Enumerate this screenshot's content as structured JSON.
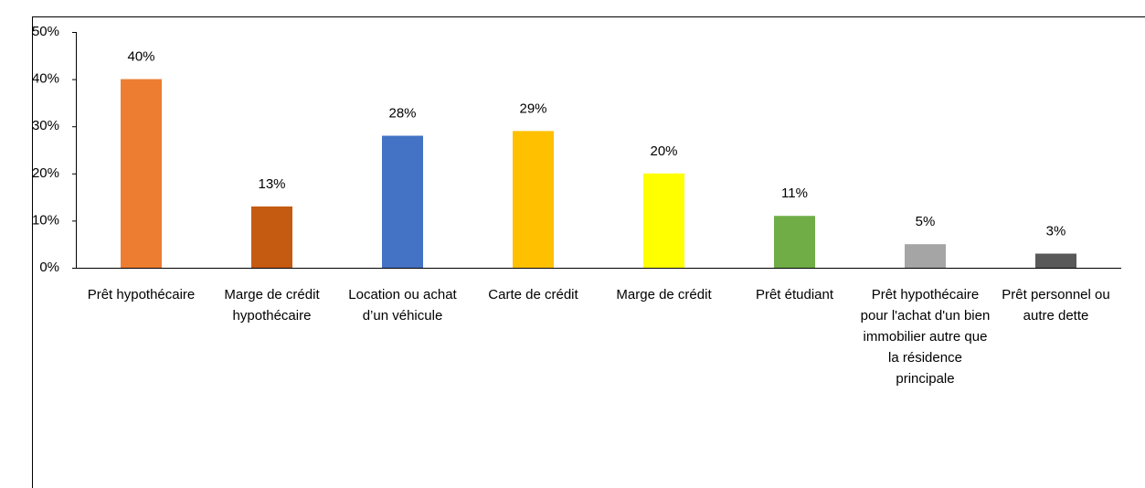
{
  "chart_data": {
    "type": "bar",
    "categories": [
      "Prêt hypothécaire",
      "Marge de crédit hypothécaire",
      "Location ou achat d’un véhicule",
      "Carte de crédit",
      "Marge de crédit",
      "Prêt étudiant",
      "Prêt hypothécaire pour l'achat d'un bien immobilier autre que la résidence principale",
      "Prêt personnel ou autre dette"
    ],
    "values": [
      40,
      13,
      28,
      29,
      20,
      11,
      5,
      3
    ],
    "value_labels": [
      "40%",
      "13%",
      "28%",
      "29%",
      "20%",
      "11%",
      "5%",
      "3%"
    ],
    "colors": [
      "#ed7d31",
      "#c55a11",
      "#4472c4",
      "#ffc000",
      "#ffff00",
      "#70ad47",
      "#a5a5a5",
      "#595959"
    ],
    "ylim": [
      0,
      50
    ],
    "yticks": [
      {
        "value": 0,
        "label": "0%"
      },
      {
        "value": 10,
        "label": "10%"
      },
      {
        "value": 20,
        "label": "20%"
      },
      {
        "value": 30,
        "label": "30%"
      },
      {
        "value": 40,
        "label": "40%"
      },
      {
        "value": 50,
        "label": "50%"
      }
    ],
    "grid": false
  }
}
